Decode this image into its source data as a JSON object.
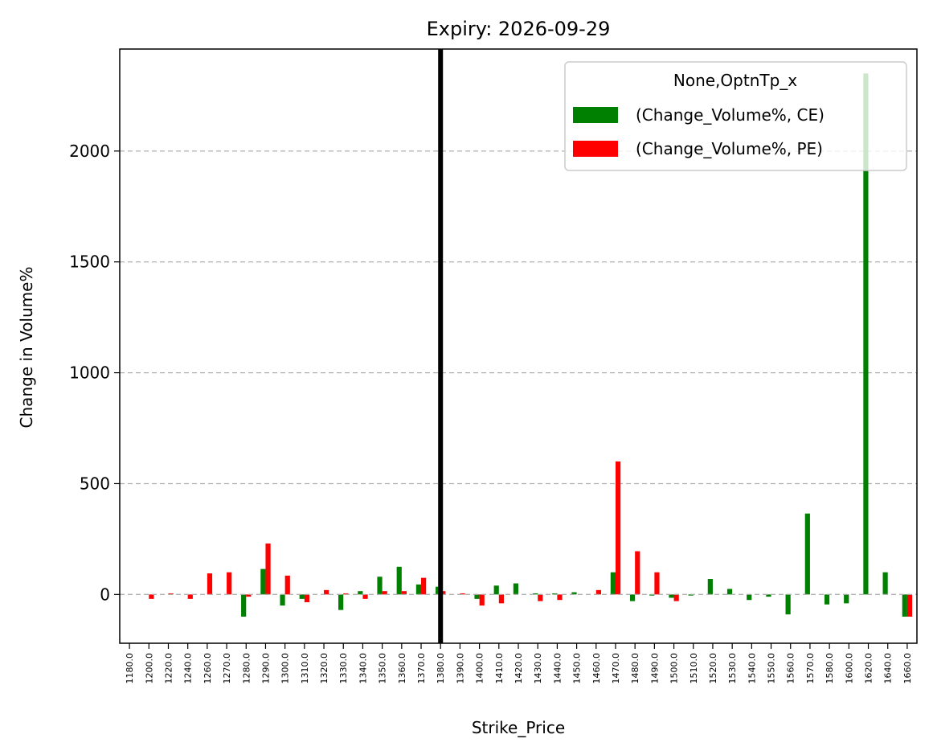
{
  "chart_data": {
    "type": "bar",
    "title": "Expiry: 2026-09-29",
    "xlabel": "Strike_Price",
    "ylabel": "Change in Volume%",
    "ylim": [
      -220,
      2460
    ],
    "yticks": [
      0,
      500,
      1000,
      1500,
      2000
    ],
    "ytick_labels": [
      "0",
      "500",
      "1000",
      "1500",
      "2000"
    ],
    "grid": "y-dashed",
    "legend_placement": "top-right",
    "legend_title": "None,OptnTp_x",
    "categories": [
      "1180.0",
      "1200.0",
      "1220.0",
      "1240.0",
      "1260.0",
      "1270.0",
      "1280.0",
      "1290.0",
      "1300.0",
      "1310.0",
      "1320.0",
      "1330.0",
      "1340.0",
      "1350.0",
      "1360.0",
      "1370.0",
      "1380.0",
      "1390.0",
      "1400.0",
      "1410.0",
      "1420.0",
      "1430.0",
      "1440.0",
      "1450.0",
      "1460.0",
      "1470.0",
      "1480.0",
      "1490.0",
      "1500.0",
      "1510.0",
      "1520.0",
      "1530.0",
      "1540.0",
      "1550.0",
      "1560.0",
      "1570.0",
      "1580.0",
      "1600.0",
      "1620.0",
      "1640.0",
      "1660.0"
    ],
    "series": [
      {
        "name": "(Change_Volume%, CE)",
        "color": "#008000",
        "values": [
          0,
          0,
          0,
          0,
          0,
          0,
          -100,
          115,
          -50,
          -20,
          0,
          -70,
          15,
          80,
          125,
          45,
          35,
          0,
          -20,
          40,
          50,
          5,
          5,
          10,
          0,
          100,
          -30,
          -5,
          -15,
          -5,
          70,
          25,
          -25,
          -10,
          -90,
          365,
          -45,
          -40,
          2350,
          100,
          -100
        ]
      },
      {
        "name": "(Change_Volume%, PE)",
        "color": "#ff0000",
        "values": [
          0,
          -20,
          5,
          -20,
          95,
          100,
          -10,
          230,
          85,
          -35,
          20,
          5,
          -20,
          15,
          15,
          75,
          15,
          5,
          -50,
          -40,
          0,
          -30,
          -25,
          0,
          20,
          600,
          195,
          100,
          -30,
          0,
          0,
          0,
          0,
          0,
          0,
          0,
          0,
          0,
          0,
          0,
          -100
        ]
      }
    ],
    "vline_at": "1380.0"
  }
}
